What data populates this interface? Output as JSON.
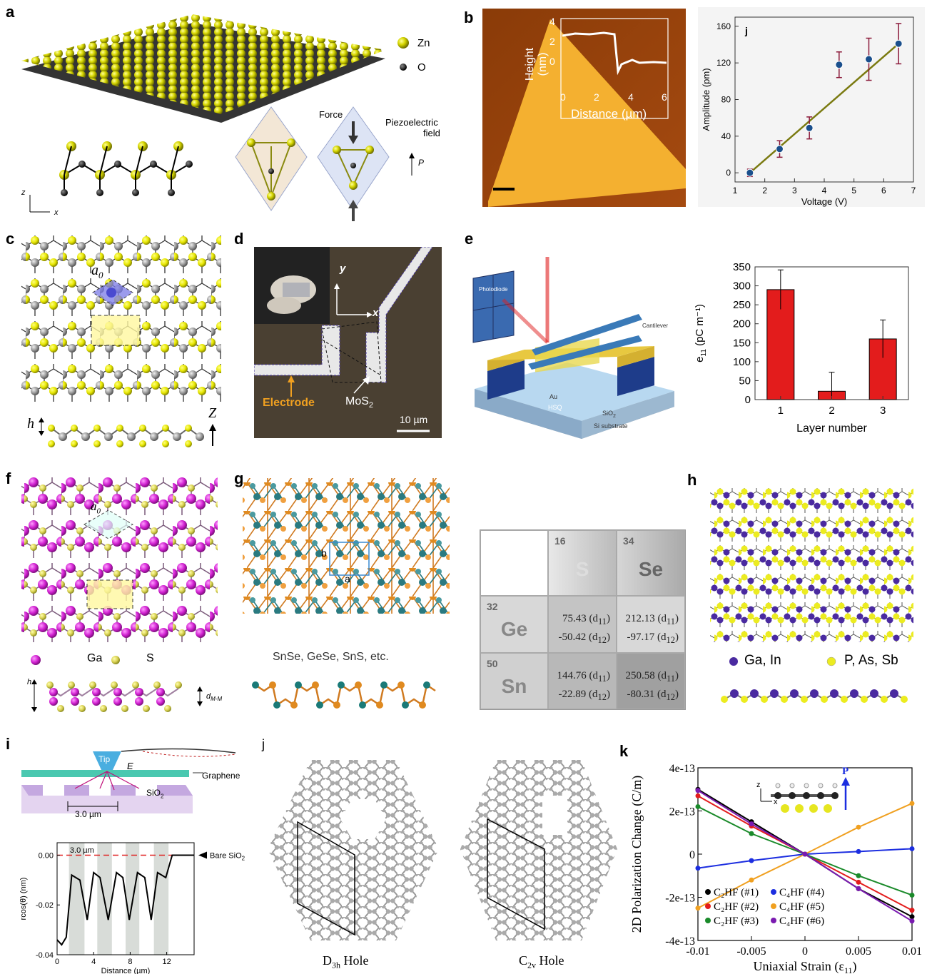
{
  "panels": {
    "a": {
      "label": "a",
      "legend_zn": "Zn",
      "legend_o": "O",
      "force": "Force",
      "piezo_l1": "Piezoelectric",
      "piezo_l2": "field",
      "p": "P",
      "axis_z": "z",
      "axis_x": "x"
    },
    "b": {
      "label": "b",
      "inset_ylabel": "Height (nm)",
      "inset_xlabel": "Distance (µm)",
      "inset_yticks": [
        "4",
        "2",
        "0"
      ],
      "inset_xticks": [
        "0",
        "2",
        "4",
        "6"
      ]
    },
    "c": {
      "label": "c",
      "a0": "a",
      "a0_sub": "0",
      "h": "h",
      "z": "Z"
    },
    "d": {
      "label": "d",
      "electrode": "Electrode",
      "mos2": "MoS",
      "mos2_sub": "2",
      "scale": "10 µm",
      "y": "y",
      "x": "x"
    },
    "e": {
      "label": "e",
      "photodiode": "Photodiode",
      "cantilever": "Cantilever",
      "au": "Au",
      "hsq": "HSQ",
      "sio2": "SiO",
      "sio2_sub": "2",
      "si": "Si substrate"
    },
    "f": {
      "label": "f",
      "a0": "a",
      "a0_sub": "0",
      "ga": "Ga",
      "s": "S",
      "h": "h",
      "dmm": "d",
      "dmm_sub": "M-M"
    },
    "g": {
      "label": "g",
      "b": "b",
      "a": "a",
      "caption": "SnSe, GeSe, SnS, etc."
    },
    "h": {
      "label": "h",
      "legend1": "Ga, In",
      "legend2": "P, As, Sb"
    },
    "i": {
      "label": "i",
      "tip": "Tip",
      "e": "E",
      "graphene": "Graphene",
      "sio2": "SiO",
      "sio2_sub": "2",
      "spacing": "3.0 µm",
      "inner_spacing": "3.0 µm",
      "bare": "Bare SiO",
      "bare_sub": "2",
      "ylabel": "rcos(θ) (nm)",
      "xlabel": "Distance (µm)",
      "yticks": [
        "0.00",
        "-0.02",
        "-0.04"
      ],
      "xticks": [
        "0",
        "4",
        "8",
        "12"
      ]
    },
    "j2": {
      "label": "j",
      "d3h": "D",
      "d3h_sub": "3h",
      "d3h_rest": " Hole",
      "c2v": "C",
      "c2v_sub": "2v",
      "c2v_rest": " Hole"
    },
    "k": {
      "label": "k",
      "p": "P",
      "z": "z",
      "x": "x"
    }
  },
  "table": {
    "col1": {
      "num": "16",
      "sym": "S"
    },
    "col2": {
      "num": "34",
      "sym": "Se"
    },
    "row1": {
      "num": "32",
      "sym": "Ge"
    },
    "row2": {
      "num": "50",
      "sym": "Sn"
    },
    "v11a": "75.43 (d",
    "v11b": "-50.42 (d",
    "v12a": "212.13 (d",
    "v12b": "-97.17 (d",
    "v21a": "144.76 (d",
    "v21b": "-22.89 (d",
    "v22a": "250.58 (d",
    "v22b": "-80.31 (d",
    "sub11": "11",
    "sub12": "12"
  },
  "chart_data": [
    {
      "type": "scatter",
      "panel_label": "j",
      "xlabel": "Voltage (V)",
      "ylabel": "Amplitude (pm)",
      "xlim": [
        1,
        7
      ],
      "ylim": [
        -10,
        170
      ],
      "xticks": [
        "1",
        "2",
        "3",
        "4",
        "5",
        "6",
        "7"
      ],
      "yticks": [
        "0",
        "40",
        "80",
        "120",
        "160"
      ],
      "x": [
        1.5,
        2.5,
        3.5,
        4.5,
        5.5,
        6.5
      ],
      "y": [
        0,
        26,
        49,
        118,
        124,
        141
      ],
      "err": [
        4,
        9,
        12,
        14,
        23,
        22
      ],
      "fit": [
        [
          1.5,
          0
        ],
        [
          6.5,
          141
        ]
      ],
      "colors": {
        "point": "#1a4f8c",
        "err": "#8b1a3a",
        "fit": "#7a7a10"
      }
    },
    {
      "type": "bar",
      "xlabel": "Layer number",
      "ylabel": "e",
      "ylabel_sub": "11",
      "ylabel_unit": " (pC m⁻¹)",
      "categories": [
        "1",
        "2",
        "3"
      ],
      "values": [
        290,
        22,
        160
      ],
      "err": [
        52,
        50,
        50
      ],
      "ylim": [
        0,
        350
      ],
      "yticks": [
        "0",
        "50",
        "100",
        "150",
        "200",
        "250",
        "300",
        "350"
      ],
      "color": "#e31c1c"
    },
    {
      "type": "line",
      "panel_label": "k",
      "xlabel": "Uniaxial Strain (ε",
      "xlabel_sub": "11",
      "xlabel_end": ")",
      "ylabel": "2D Polarization Change (C/m)",
      "xlim": [
        -0.01,
        0.01
      ],
      "ylim": [
        -4e-13,
        4e-13
      ],
      "xticks": [
        "-0.01",
        "-0.005",
        "0",
        "0.005",
        "0.01"
      ],
      "yticks": [
        "4e-13",
        "2e-13",
        "0",
        "-2e-13",
        "-4e-13"
      ],
      "x": [
        -0.01,
        -0.005,
        0,
        0.005,
        0.01
      ],
      "series": [
        {
          "name": "C₂HF (#1)",
          "color": "#000000",
          "values": [
            3e-13,
            1.5e-13,
            0,
            -1.6e-13,
            -2.9e-13
          ]
        },
        {
          "name": "C₂HF (#2)",
          "color": "#e31c1c",
          "values": [
            2.7e-13,
            1.3e-13,
            0,
            -1.3e-13,
            -2.6e-13
          ]
        },
        {
          "name": "C₂HF (#3)",
          "color": "#1a8a2a",
          "values": [
            2.2e-13,
            9.5e-14,
            0,
            -1e-13,
            -1.9e-13
          ]
        },
        {
          "name": "C₄HF (#4)",
          "color": "#1c2ee0",
          "values": [
            -6.5e-14,
            -3e-14,
            0,
            1.2e-14,
            2.5e-14
          ]
        },
        {
          "name": "C₄HF (#5)",
          "color": "#f0a020",
          "values": [
            -2.5e-13,
            -1.2e-13,
            0,
            1.25e-13,
            2.35e-13
          ]
        },
        {
          "name": "C₄HF (#6)",
          "color": "#7a1ab0",
          "values": [
            2.95e-13,
            1.4e-13,
            0,
            -1.6e-13,
            -3.1e-13
          ]
        }
      ]
    },
    {
      "type": "line",
      "panel_label": "i",
      "xlabel": "Distance (µm)",
      "ylabel": "rcos(θ) (nm)",
      "xlim": [
        0,
        15
      ],
      "ylim": [
        -0.04,
        0.005
      ],
      "x": [
        0,
        0.5,
        1,
        1.6,
        2.5,
        3.3,
        4,
        4.7,
        5.6,
        6.5,
        7.2,
        7.9,
        8.8,
        9.6,
        10.3,
        11,
        11.9,
        12.6,
        13.3,
        15
      ],
      "y": [
        -0.034,
        -0.036,
        -0.033,
        -0.008,
        -0.01,
        -0.026,
        -0.007,
        -0.009,
        -0.026,
        -0.007,
        -0.009,
        -0.026,
        -0.007,
        -0.009,
        -0.026,
        -0.007,
        -0.009,
        0.0,
        0.0,
        0.0
      ]
    }
  ]
}
